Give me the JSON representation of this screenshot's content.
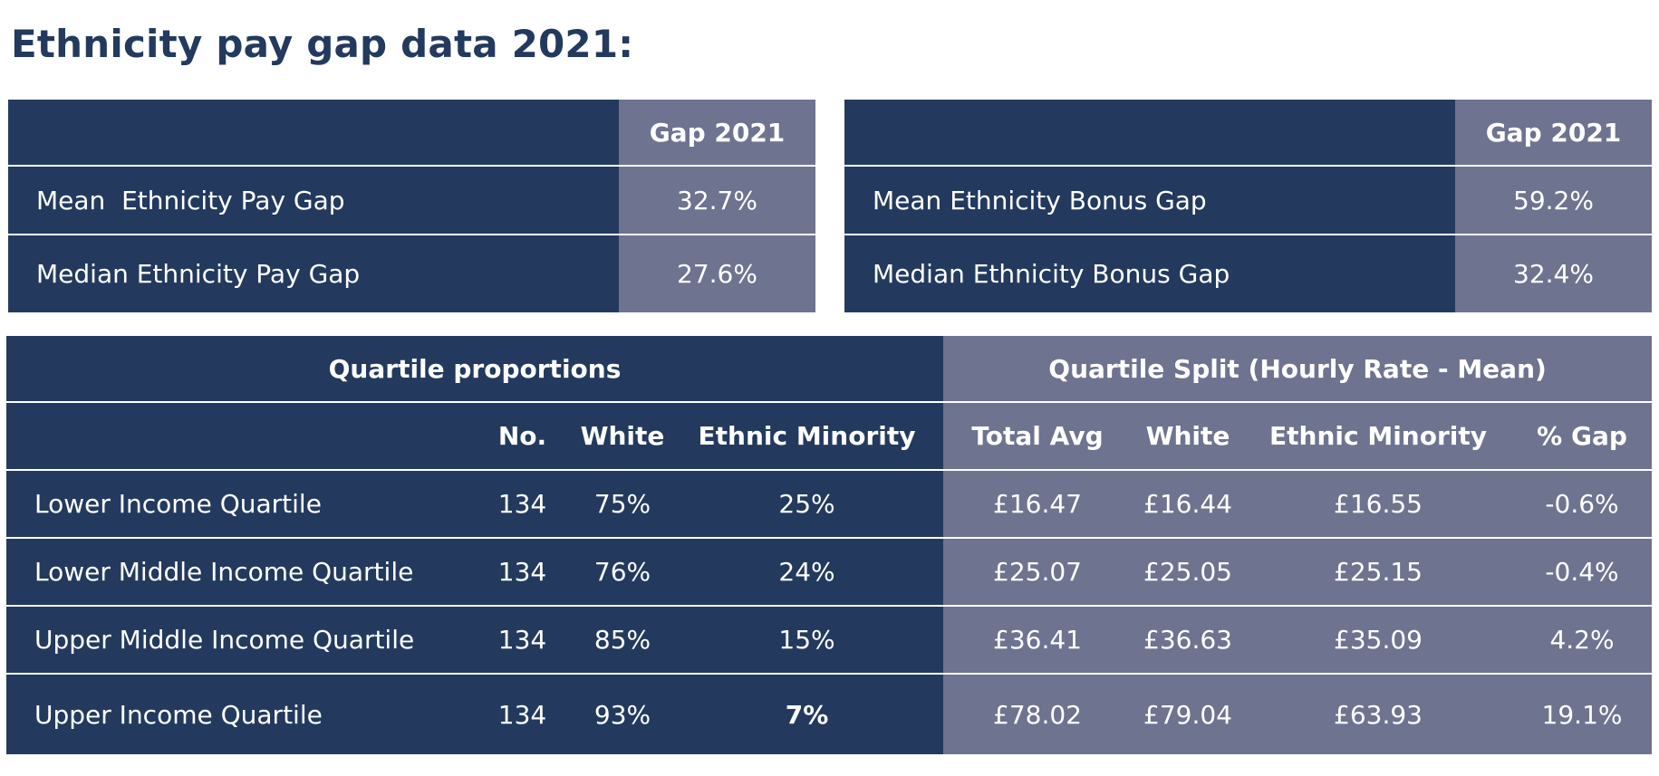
{
  "title": "Ethnicity pay gap data 2021:",
  "pay_gap_table": {
    "header": "Gap 2021",
    "rows": [
      {
        "label": "Mean  Ethnicity Pay Gap",
        "value": "32.7%"
      },
      {
        "label": "Median Ethnicity Pay Gap",
        "value": "27.6%"
      }
    ]
  },
  "bonus_gap_table": {
    "header": "Gap 2021",
    "rows": [
      {
        "label": "Mean Ethnicity Bonus Gap",
        "value": "59.2%"
      },
      {
        "label": "Median Ethnicity Bonus Gap",
        "value": "32.4%"
      }
    ]
  },
  "quartile_table": {
    "group_headers": {
      "proportions": "Quartile proportions",
      "split": "Quartile Split (Hourly Rate - Mean)"
    },
    "columns": {
      "no": "No.",
      "white": "White",
      "ethnic_minority": "Ethnic Minority",
      "total_avg": "Total Avg",
      "split_white": "White",
      "split_ethnic_minority": "Ethnic Minority",
      "pct_gap": "% Gap"
    },
    "rows": [
      {
        "quartile": "Lower Income Quartile",
        "no": "134",
        "white": "75%",
        "ethnic_minority": "25%",
        "total_avg": "£16.47",
        "split_white": "£16.44",
        "split_ethnic_minority": "£16.55",
        "pct_gap": "-0.6%"
      },
      {
        "quartile": "Lower Middle Income Quartile",
        "no": "134",
        "white": "76%",
        "ethnic_minority": "24%",
        "total_avg": "£25.07",
        "split_white": "£25.05",
        "split_ethnic_minority": "£25.15",
        "pct_gap": "-0.4%"
      },
      {
        "quartile": "Upper Middle Income Quartile",
        "no": "134",
        "white": "85%",
        "ethnic_minority": "15%",
        "total_avg": "£36.41",
        "split_white": "£36.63",
        "split_ethnic_minority": "£35.09",
        "pct_gap": "4.2%"
      },
      {
        "quartile": "Upper Income Quartile",
        "no": "134",
        "white": "93%",
        "ethnic_minority": "7%",
        "total_avg": "£78.02",
        "split_white": "£79.04",
        "split_ethnic_minority": "£63.93",
        "pct_gap": "19.1%"
      }
    ]
  },
  "colors": {
    "title_navy": "#233a5e",
    "dark_cell": "#233a5e",
    "light_cell": "#6e7390",
    "text": "#ffffff"
  }
}
